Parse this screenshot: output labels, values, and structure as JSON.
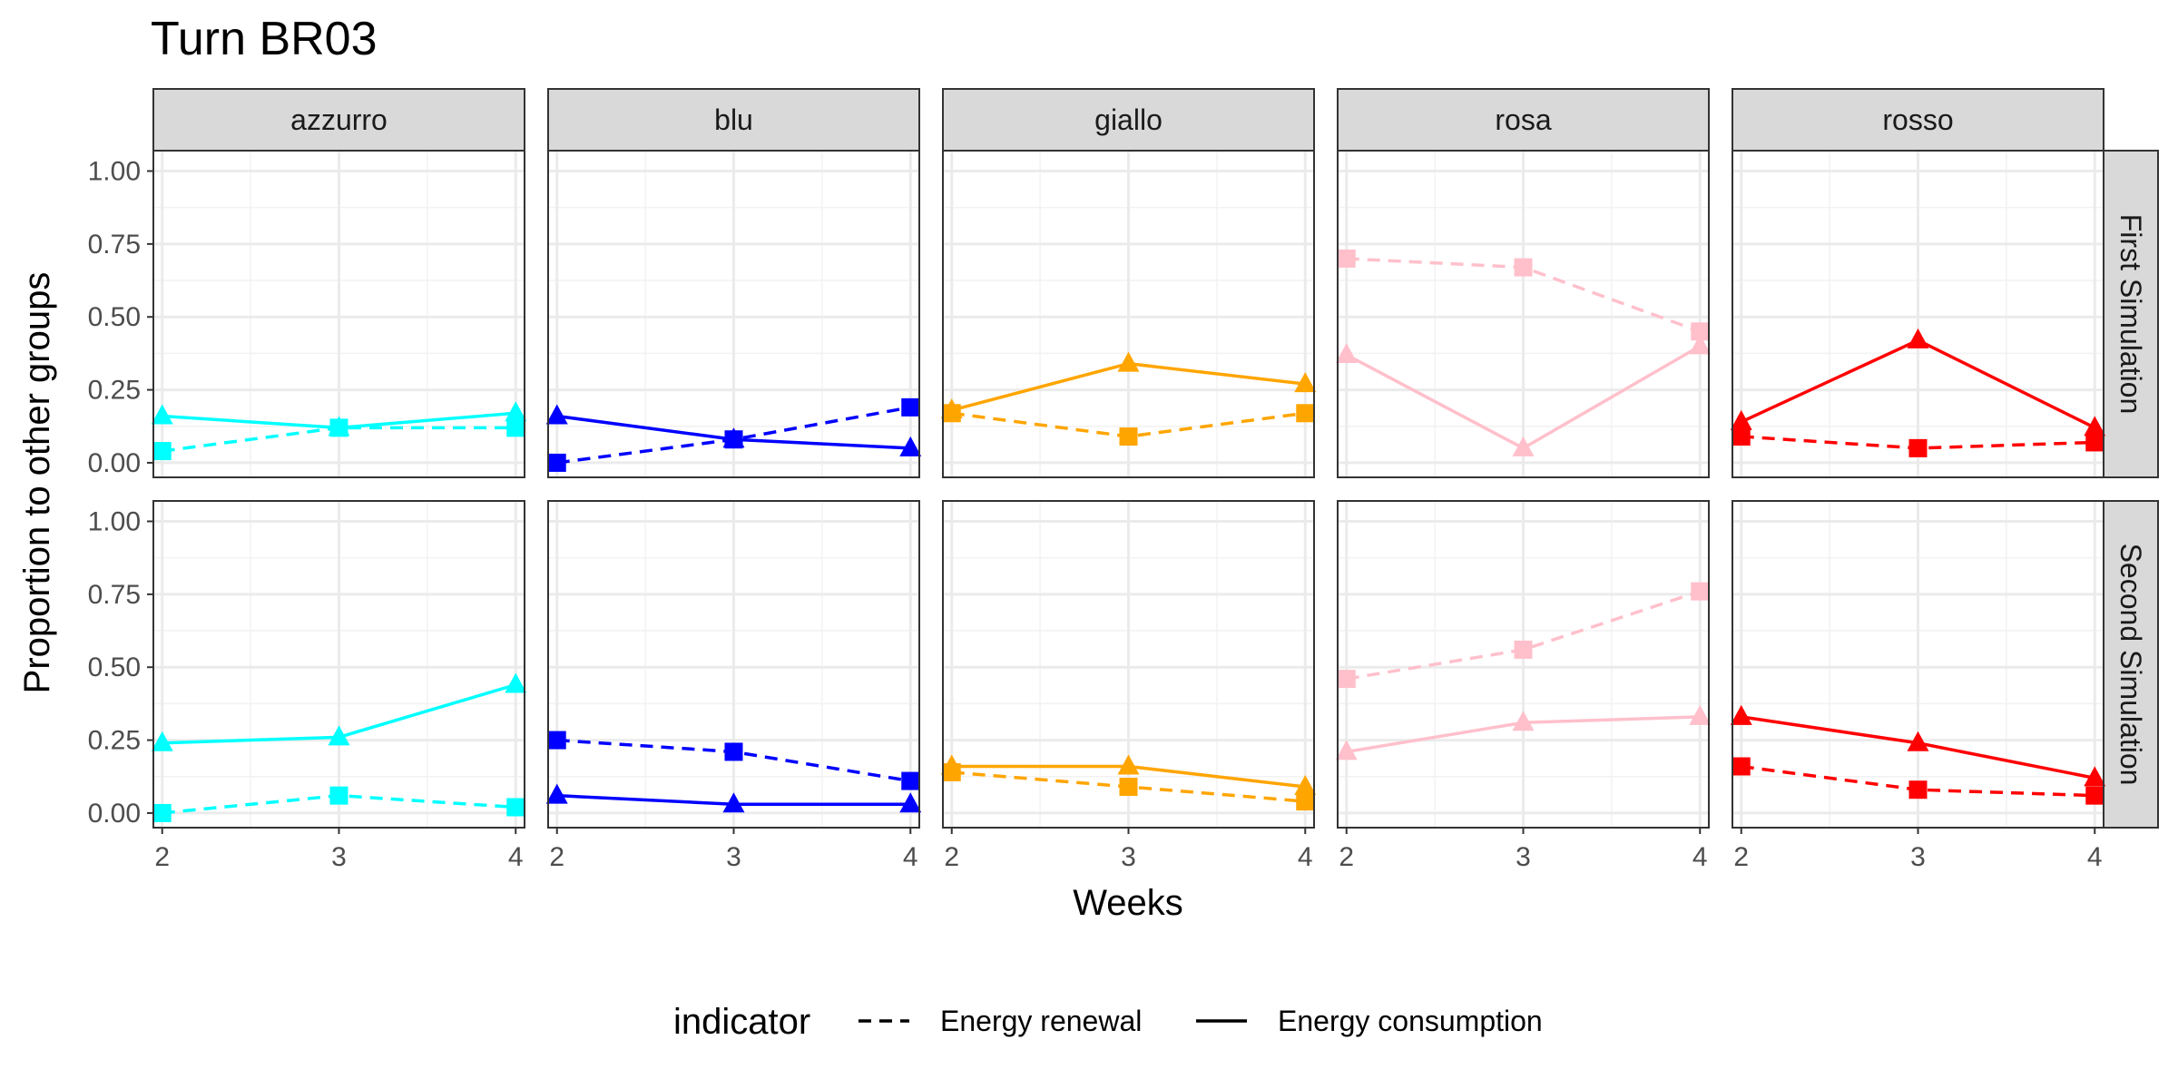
{
  "chart_data": {
    "type": "line",
    "title": "Turn BR03",
    "xlabel": "Weeks",
    "ylabel": "Proportion to other groups",
    "x": [
      2,
      3,
      4
    ],
    "x_ticks": [
      "2",
      "3",
      "4"
    ],
    "y_ticks": [
      "0.00",
      "0.25",
      "0.50",
      "0.75",
      "1.00"
    ],
    "ylim": [
      0,
      1
    ],
    "grid": true,
    "legend": {
      "title": "indicator",
      "placement": "bottom",
      "entries": [
        {
          "label": "Energy renewal",
          "linetype": "dashed",
          "shape": "square"
        },
        {
          "label": "Energy consumption",
          "linetype": "solid",
          "shape": "triangle"
        }
      ]
    },
    "facet_columns": [
      "azzurro",
      "blu",
      "giallo",
      "rosa",
      "rosso"
    ],
    "facet_rows": [
      "First Simulation",
      "Second Simulation"
    ],
    "colors": {
      "azzurro": "#00FFFF",
      "blu": "#0000FF",
      "giallo": "#FFA500",
      "rosa": "#FFC0CB",
      "rosso": "#FF0000"
    },
    "series": [
      {
        "row": "First Simulation",
        "column": "azzurro",
        "indicator": "Energy renewal",
        "values": [
          0.04,
          0.12,
          0.12
        ]
      },
      {
        "row": "First Simulation",
        "column": "azzurro",
        "indicator": "Energy consumption",
        "values": [
          0.16,
          0.12,
          0.17
        ]
      },
      {
        "row": "First Simulation",
        "column": "blu",
        "indicator": "Energy renewal",
        "values": [
          0.0,
          0.08,
          0.19
        ]
      },
      {
        "row": "First Simulation",
        "column": "blu",
        "indicator": "Energy consumption",
        "values": [
          0.16,
          0.08,
          0.05
        ]
      },
      {
        "row": "First Simulation",
        "column": "giallo",
        "indicator": "Energy renewal",
        "values": [
          0.17,
          0.09,
          0.17
        ]
      },
      {
        "row": "First Simulation",
        "column": "giallo",
        "indicator": "Energy consumption",
        "values": [
          0.18,
          0.34,
          0.27
        ]
      },
      {
        "row": "First Simulation",
        "column": "rosa",
        "indicator": "Energy renewal",
        "values": [
          0.7,
          0.67,
          0.45
        ]
      },
      {
        "row": "First Simulation",
        "column": "rosa",
        "indicator": "Energy consumption",
        "values": [
          0.37,
          0.05,
          0.4
        ]
      },
      {
        "row": "First Simulation",
        "column": "rosso",
        "indicator": "Energy renewal",
        "values": [
          0.09,
          0.05,
          0.07
        ]
      },
      {
        "row": "First Simulation",
        "column": "rosso",
        "indicator": "Energy consumption",
        "values": [
          0.14,
          0.42,
          0.12
        ]
      },
      {
        "row": "Second Simulation",
        "column": "azzurro",
        "indicator": "Energy renewal",
        "values": [
          0.0,
          0.06,
          0.02
        ]
      },
      {
        "row": "Second Simulation",
        "column": "azzurro",
        "indicator": "Energy consumption",
        "values": [
          0.24,
          0.26,
          0.44
        ]
      },
      {
        "row": "Second Simulation",
        "column": "blu",
        "indicator": "Energy renewal",
        "values": [
          0.25,
          0.21,
          0.11
        ]
      },
      {
        "row": "Second Simulation",
        "column": "blu",
        "indicator": "Energy consumption",
        "values": [
          0.06,
          0.03,
          0.03
        ]
      },
      {
        "row": "Second Simulation",
        "column": "giallo",
        "indicator": "Energy renewal",
        "values": [
          0.14,
          0.09,
          0.04
        ]
      },
      {
        "row": "Second Simulation",
        "column": "giallo",
        "indicator": "Energy consumption",
        "values": [
          0.16,
          0.16,
          0.09
        ]
      },
      {
        "row": "Second Simulation",
        "column": "rosa",
        "indicator": "Energy renewal",
        "values": [
          0.46,
          0.56,
          0.76
        ]
      },
      {
        "row": "Second Simulation",
        "column": "rosa",
        "indicator": "Energy consumption",
        "values": [
          0.21,
          0.31,
          0.33
        ]
      },
      {
        "row": "Second Simulation",
        "column": "rosso",
        "indicator": "Energy renewal",
        "values": [
          0.16,
          0.08,
          0.06
        ]
      },
      {
        "row": "Second Simulation",
        "column": "rosso",
        "indicator": "Energy consumption",
        "values": [
          0.33,
          0.24,
          0.12
        ]
      }
    ]
  }
}
